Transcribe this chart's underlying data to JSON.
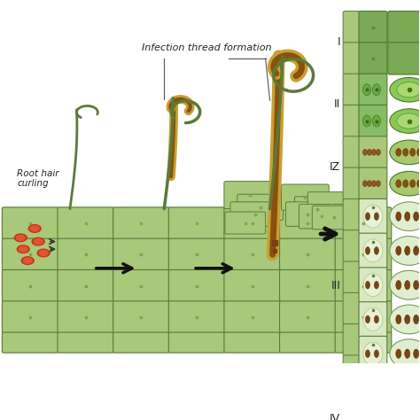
{
  "background_color": "#ffffff",
  "cell_color": "#a8c87a",
  "cell_edge_color": "#5a7a3a",
  "cell_dot_color": "#7aaa50",
  "infection_thread_outer": "#c8a030",
  "infection_thread_inner": "#8b5010",
  "rhizobium_color": "#cc3311",
  "arrow_color": "#111111",
  "text_color": "#222222",
  "label_root_hair": "Root hair\ncurling",
  "label_infection": "Infection thread formation",
  "zone_labels": [
    "I",
    "II",
    "IZ",
    "III",
    "IV"
  ],
  "fig_width": 4.74,
  "fig_height": 4.74
}
